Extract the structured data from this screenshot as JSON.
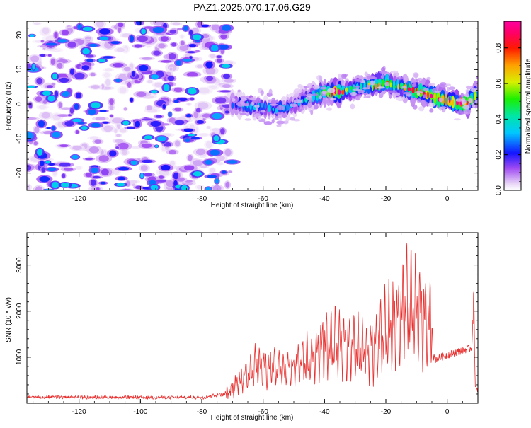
{
  "figure": {
    "title": "PAZ1.2025.070.17.06.G29"
  },
  "chart_data": [
    {
      "type": "heatmap",
      "title": "PAZ1.2025.070.17.06.G29",
      "xlabel": "Height of straight line (km)",
      "ylabel": "Frequency (Hz)",
      "xlim": [
        -137,
        10
      ],
      "ylim": [
        -25,
        24
      ],
      "xticks": [
        -120,
        -100,
        -80,
        -60,
        -40,
        -20,
        0
      ],
      "yticks": [
        -20,
        -10,
        0,
        10,
        20
      ],
      "grid": false,
      "colorbar": {
        "label": "Normalized spectral amplitude",
        "range": [
          0,
          0.95
        ],
        "ticks": [
          0.0,
          0.2,
          0.4,
          0.6,
          0.8
        ]
      },
      "noise_region": {
        "x_range": [
          -137,
          -70
        ],
        "y_range": [
          -25,
          24
        ],
        "typical_amplitude": 0.15,
        "max_amplitude": 0.35
      },
      "ridge": [
        {
          "x": -70,
          "y": 0.0,
          "amp": 0.25
        },
        {
          "x": -65,
          "y": -0.5,
          "amp": 0.35
        },
        {
          "x": -60,
          "y": -1.0,
          "amp": 0.3
        },
        {
          "x": -55,
          "y": -1.5,
          "amp": 0.3
        },
        {
          "x": -50,
          "y": 0.0,
          "amp": 0.3
        },
        {
          "x": -45,
          "y": 1.5,
          "amp": 0.35
        },
        {
          "x": -40,
          "y": 3.5,
          "amp": 0.6
        },
        {
          "x": -36,
          "y": 3.5,
          "amp": 0.9
        },
        {
          "x": -32,
          "y": 4.0,
          "amp": 0.45
        },
        {
          "x": -28,
          "y": 5.0,
          "amp": 0.45
        },
        {
          "x": -24,
          "y": 5.5,
          "amp": 0.6
        },
        {
          "x": -20,
          "y": 6.0,
          "amp": 0.65
        },
        {
          "x": -15,
          "y": 5.0,
          "amp": 0.5
        },
        {
          "x": -12,
          "y": 4.0,
          "amp": 0.85
        },
        {
          "x": -9,
          "y": 3.5,
          "amp": 0.75
        },
        {
          "x": -6,
          "y": 3.0,
          "amp": 0.85
        },
        {
          "x": -3,
          "y": 2.0,
          "amp": 0.8
        },
        {
          "x": 0,
          "y": 1.0,
          "amp": 0.85
        },
        {
          "x": 4,
          "y": 0.0,
          "amp": 0.9
        },
        {
          "x": 7,
          "y": 0.5,
          "amp": 0.85
        },
        {
          "x": 10,
          "y": 3.0,
          "amp": 0.6
        }
      ]
    },
    {
      "type": "line",
      "xlabel": "Height of straight line (km)",
      "ylabel": "SNR (10 * v/v)",
      "xlim": [
        -137,
        10
      ],
      "ylim": [
        0,
        3700
      ],
      "xticks": [
        -120,
        -100,
        -80,
        -60,
        -40,
        -20,
        0
      ],
      "yticks": [
        1000,
        2000,
        3000
      ],
      "grid": false,
      "series": [
        {
          "color": "#e8302f",
          "envelope": [
            {
              "x": -137,
              "base": 120,
              "peak": 150
            },
            {
              "x": -100,
              "base": 110,
              "peak": 140
            },
            {
              "x": -80,
              "base": 110,
              "peak": 140
            },
            {
              "x": -72,
              "base": 180,
              "peak": 250
            },
            {
              "x": -68,
              "base": 400,
              "peak": 700
            },
            {
              "x": -62,
              "base": 600,
              "peak": 1300
            },
            {
              "x": -55,
              "base": 550,
              "peak": 1150
            },
            {
              "x": -50,
              "base": 600,
              "peak": 1200
            },
            {
              "x": -44,
              "base": 700,
              "peak": 1600
            },
            {
              "x": -40,
              "base": 800,
              "peak": 2150
            },
            {
              "x": -32,
              "base": 750,
              "peak": 2100
            },
            {
              "x": -26,
              "base": 700,
              "peak": 1800
            },
            {
              "x": -20,
              "base": 900,
              "peak": 2600
            },
            {
              "x": -16,
              "base": 1100,
              "peak": 3000
            },
            {
              "x": -13,
              "base": 1300,
              "peak": 3650
            },
            {
              "x": -8,
              "base": 1200,
              "peak": 3100
            },
            {
              "x": -5,
              "base": 1100,
              "peak": 2800
            },
            {
              "x": -4,
              "base": 950,
              "peak": 1100
            },
            {
              "x": 0,
              "base": 1050,
              "peak": 1250
            },
            {
              "x": 5,
              "base": 1150,
              "peak": 1350
            },
            {
              "x": 8,
              "base": 1200,
              "peak": 1500
            },
            {
              "x": 8.6,
              "base": 2300,
              "peak": 2700
            },
            {
              "x": 9.2,
              "base": 250,
              "peak": 500
            },
            {
              "x": 10,
              "base": 300,
              "peak": 500
            }
          ]
        }
      ]
    }
  ]
}
